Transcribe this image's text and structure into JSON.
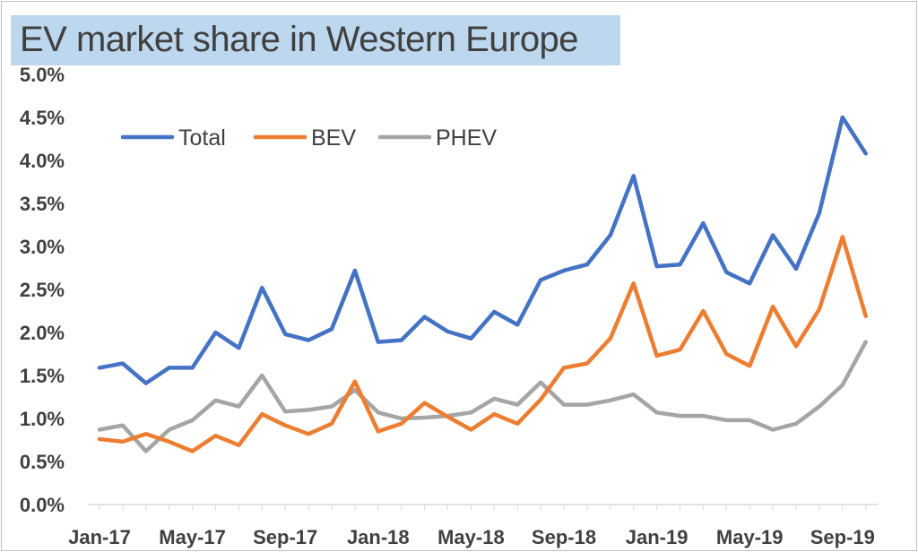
{
  "chart_data": {
    "type": "line",
    "title": "EV market share in Western Europe",
    "xlabel": "",
    "ylabel": "",
    "ylim": [
      0,
      0.05
    ],
    "y_ticks": [
      "0.0%",
      "0.5%",
      "1.0%",
      "1.5%",
      "2.0%",
      "2.5%",
      "3.0%",
      "3.5%",
      "4.0%",
      "4.5%",
      "5.0%"
    ],
    "x_tick_labels": [
      "Jan-17",
      "May-17",
      "Sep-17",
      "Jan-18",
      "May-18",
      "Sep-18",
      "Jan-19",
      "May-19",
      "Sep-19"
    ],
    "x": [
      "Jan-17",
      "Feb-17",
      "Mar-17",
      "Apr-17",
      "May-17",
      "Jun-17",
      "Jul-17",
      "Aug-17",
      "Sep-17",
      "Oct-17",
      "Nov-17",
      "Dec-17",
      "Jan-18",
      "Feb-18",
      "Mar-18",
      "Apr-18",
      "May-18",
      "Jun-18",
      "Jul-18",
      "Aug-18",
      "Sep-18",
      "Oct-18",
      "Nov-18",
      "Dec-18",
      "Jan-19",
      "Feb-19",
      "Mar-19",
      "Apr-19",
      "May-19",
      "Jun-19",
      "Jul-19",
      "Aug-19",
      "Sep-19",
      "Oct-19"
    ],
    "grid": false,
    "legend_position": "top-left",
    "series": [
      {
        "name": "Total",
        "color": "#4472c4",
        "values": [
          1.59,
          1.64,
          1.41,
          1.59,
          1.59,
          2.0,
          1.82,
          2.52,
          1.98,
          1.91,
          2.04,
          2.72,
          1.89,
          1.91,
          2.18,
          2.01,
          1.93,
          2.24,
          2.09,
          2.61,
          2.72,
          2.79,
          3.13,
          3.82,
          2.77,
          2.79,
          3.27,
          2.7,
          2.57,
          3.13,
          2.74,
          3.39,
          4.5,
          4.08
        ]
      },
      {
        "name": "BEV",
        "color": "#ed7d31",
        "values": [
          0.76,
          0.73,
          0.82,
          0.73,
          0.62,
          0.8,
          0.69,
          1.05,
          0.92,
          0.82,
          0.94,
          1.43,
          0.85,
          0.94,
          1.18,
          1.02,
          0.87,
          1.05,
          0.94,
          1.22,
          1.59,
          1.64,
          1.93,
          2.57,
          1.73,
          1.8,
          2.25,
          1.75,
          1.61,
          2.3,
          1.84,
          2.27,
          3.11,
          2.19
        ]
      },
      {
        "name": "PHEV",
        "color": "#a5a5a5",
        "values": [
          0.87,
          0.92,
          0.62,
          0.87,
          0.98,
          1.21,
          1.14,
          1.5,
          1.08,
          1.1,
          1.14,
          1.33,
          1.07,
          1.0,
          1.01,
          1.03,
          1.07,
          1.23,
          1.16,
          1.42,
          1.16,
          1.16,
          1.21,
          1.28,
          1.07,
          1.03,
          1.03,
          0.98,
          0.98,
          0.87,
          0.94,
          1.14,
          1.39,
          1.89
        ]
      }
    ]
  }
}
